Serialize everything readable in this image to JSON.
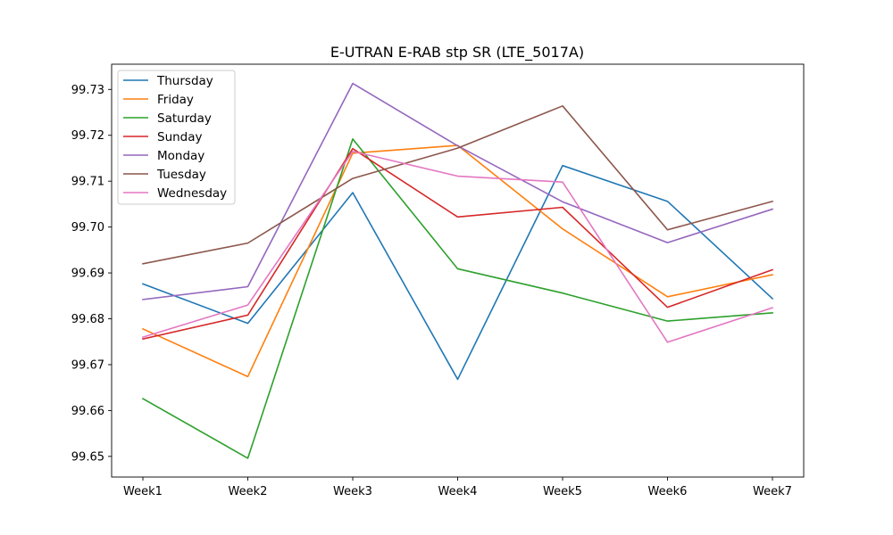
{
  "chart_data": {
    "type": "line",
    "title": "E-UTRAN E-RAB stp SR (LTE_5017A)",
    "xlabel": "",
    "ylabel": "",
    "categories": [
      "Week1",
      "Week2",
      "Week3",
      "Week4",
      "Week5",
      "Week6",
      "Week7"
    ],
    "ylim": [
      99.6455,
      99.7355
    ],
    "yticks": [
      "99.65",
      "99.66",
      "99.67",
      "99.68",
      "99.69",
      "99.70",
      "99.71",
      "99.72",
      "99.73"
    ],
    "grid": false,
    "legend_position": "top-left",
    "series": [
      {
        "name": "Thursday",
        "color": "#1f77b4",
        "values": [
          99.6876,
          99.679,
          99.7075,
          99.6668,
          99.7134,
          99.7056,
          99.6844
        ]
      },
      {
        "name": "Friday",
        "color": "#ff7f0e",
        "values": [
          99.6778,
          99.6674,
          99.7161,
          99.7178,
          99.6996,
          99.6848,
          99.6896
        ]
      },
      {
        "name": "Saturday",
        "color": "#2ca02c",
        "values": [
          99.6626,
          99.6496,
          99.7192,
          99.6909,
          99.6856,
          99.6795,
          99.6813
        ]
      },
      {
        "name": "Sunday",
        "color": "#d62728",
        "values": [
          99.6756,
          99.6808,
          99.7171,
          99.7022,
          99.7043,
          99.6825,
          99.6907
        ]
      },
      {
        "name": "Monday",
        "color": "#9467bd",
        "values": [
          99.6842,
          99.687,
          99.7313,
          99.7177,
          99.7055,
          99.6966,
          99.7039
        ]
      },
      {
        "name": "Tuesday",
        "color": "#8c564b",
        "values": [
          99.692,
          99.6965,
          99.7106,
          99.7172,
          99.7264,
          99.6994,
          99.7056
        ]
      },
      {
        "name": "Wednesday",
        "color": "#e377c2",
        "values": [
          99.676,
          99.683,
          99.7165,
          99.7111,
          99.7098,
          99.6749,
          99.6824
        ]
      }
    ]
  }
}
